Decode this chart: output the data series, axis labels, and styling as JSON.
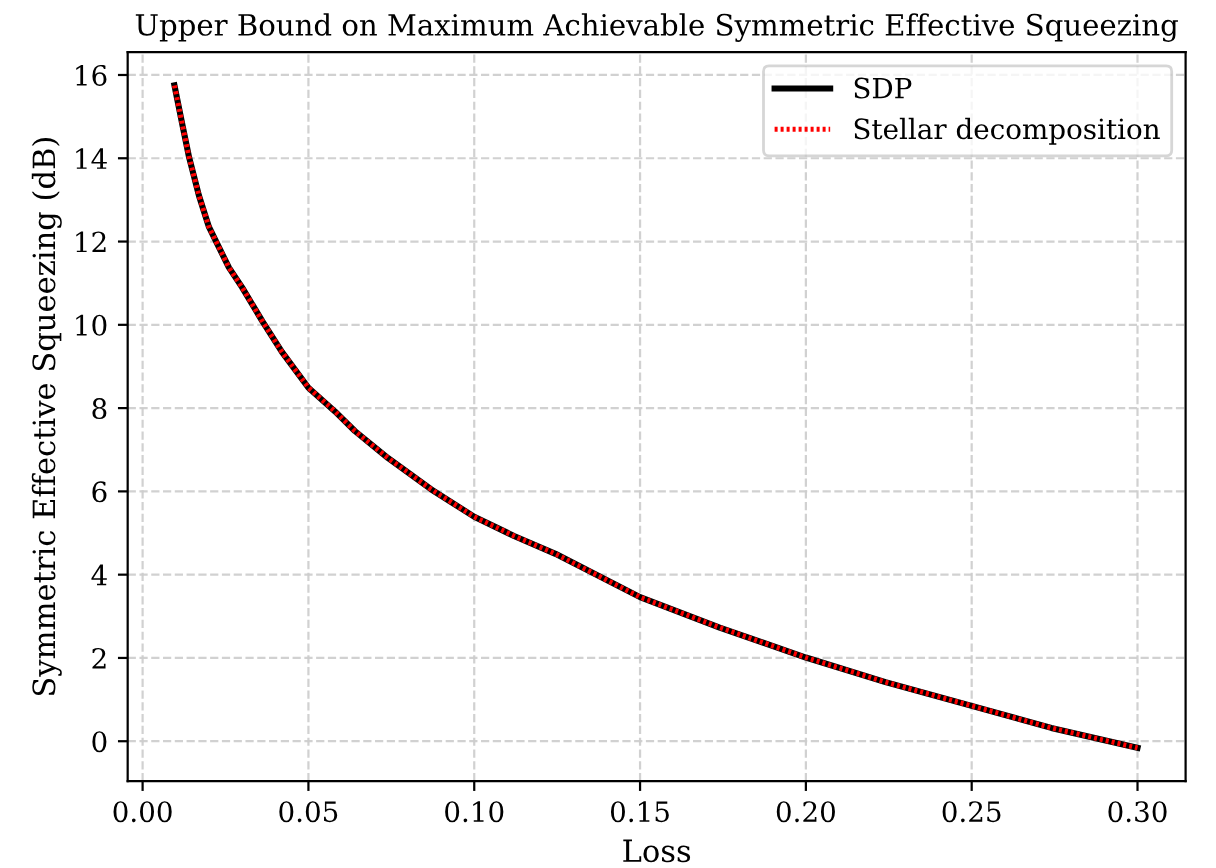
{
  "chart_data": {
    "type": "line",
    "title": "Upper Bound on Maximum Achievable Symmetric Effective Squeezing",
    "xlabel": "Loss",
    "ylabel": "Symmetric Effective Squeezing (dB)",
    "x": [
      0.0096,
      0.012,
      0.014,
      0.017,
      0.02,
      0.026,
      0.03,
      0.036,
      0.042,
      0.05,
      0.058,
      0.064,
      0.074,
      0.087,
      0.1,
      0.112,
      0.1245,
      0.15,
      0.174,
      0.2,
      0.224,
      0.25,
      0.274,
      0.3
    ],
    "series": [
      {
        "name": "SDP",
        "color": "#000000",
        "line_style": "solid",
        "values": [
          15.75,
          14.8,
          14.03,
          13.1,
          12.35,
          11.38,
          10.9,
          10.1,
          9.35,
          8.49,
          7.92,
          7.45,
          6.8,
          6.05,
          5.39,
          4.93,
          4.5,
          3.46,
          2.73,
          2.01,
          1.42,
          0.85,
          0.32,
          -0.16
        ]
      },
      {
        "name": "Stellar decomposition",
        "color": "#ff0000",
        "line_style": "dotted",
        "values": [
          15.75,
          14.8,
          14.03,
          13.1,
          12.35,
          11.38,
          10.9,
          10.1,
          9.35,
          8.49,
          7.92,
          7.45,
          6.8,
          6.05,
          5.39,
          4.93,
          4.5,
          3.46,
          2.73,
          2.01,
          1.42,
          0.85,
          0.32,
          -0.16
        ]
      }
    ],
    "xlim": [
      -0.0045,
      0.3145
    ],
    "ylim": [
      -0.96,
      16.55
    ],
    "xticks": [
      {
        "value": 0,
        "label": "0.00"
      },
      0.05,
      {
        "value": 0.1,
        "label": "0.10"
      },
      0.15,
      {
        "value": 0.2,
        "label": "0.20"
      },
      0.25,
      {
        "value": 0.3,
        "label": "0.30"
      }
    ],
    "yticks": [
      0,
      2,
      4,
      6,
      8,
      10,
      12,
      14,
      16
    ],
    "grid": true,
    "legend": "top right",
    "marker": "none"
  }
}
